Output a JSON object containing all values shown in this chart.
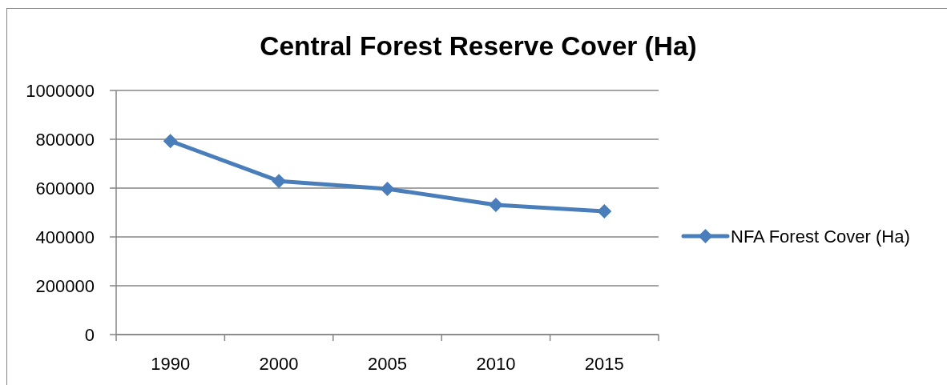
{
  "chart_data": {
    "type": "line",
    "title": "Central Forest Reserve Cover (Ha)",
    "categories": [
      "1990",
      "2000",
      "2005",
      "2010",
      "2015"
    ],
    "series": [
      {
        "name": "NFA Forest Cover (Ha)",
        "color": "#4a7ebb",
        "values": [
          793000,
          629000,
          597000,
          531000,
          505000
        ]
      }
    ],
    "ylim": [
      0,
      1000000
    ],
    "yticks": [
      0,
      200000,
      400000,
      600000,
      800000,
      1000000
    ],
    "grid": "y",
    "legend": "right",
    "marker": "diamond",
    "line_style": "solid"
  }
}
